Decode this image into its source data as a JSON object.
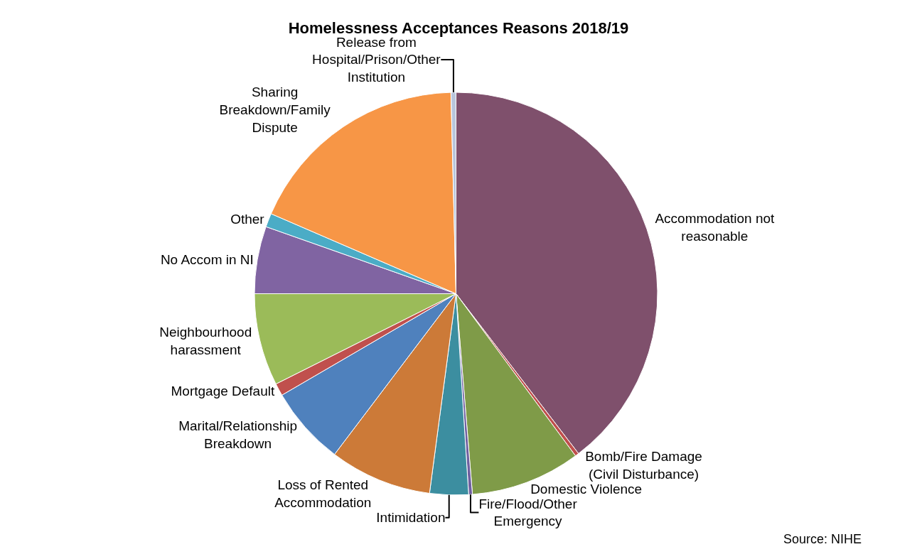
{
  "chart_data": {
    "type": "pie",
    "title": "Homelessness Acceptances Reasons 2018/19",
    "categories": [
      "Accommodation not reasonable",
      "Bomb/Fire Damage (Civil Disturbance)",
      "Domestic Violence",
      "Fire/Flood/Other Emergency",
      "Intimidation",
      "Loss of Rented Accommodation",
      "Marital/Relationship Breakdown",
      "Mortgage Default",
      "Neighbourhood harassment",
      "No Accom in NI",
      "Other",
      "Sharing Breakdown/Family Dispute",
      "Release from Hospital/Prison/Other Institution"
    ],
    "values": [
      39.6,
      0.3,
      8.8,
      0.3,
      3.1,
      8.2,
      6.3,
      1.0,
      7.4,
      5.4,
      1.1,
      18.1,
      0.4
    ],
    "colors": [
      "#7f506c",
      "#c0504d",
      "#7f9b48",
      "#7060a0",
      "#3c8ea0",
      "#cc7a38",
      "#4f81bd",
      "#c0504d",
      "#9bbb59",
      "#8064a2",
      "#4bacc6",
      "#f79646",
      "#b9c6dc"
    ],
    "annotations": [
      "Source: NIHE"
    ],
    "legend": false
  }
}
